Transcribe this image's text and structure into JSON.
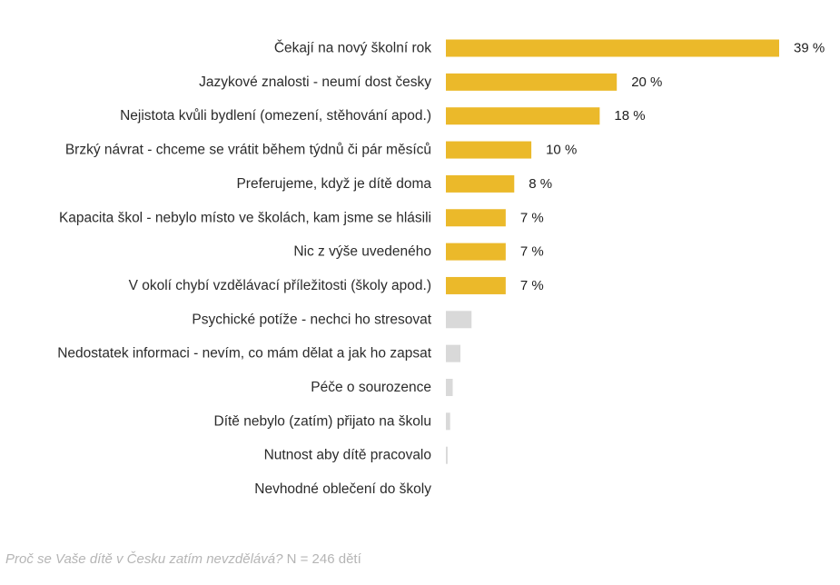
{
  "chart_data": {
    "type": "bar",
    "orientation": "horizontal",
    "title": "",
    "xlabel": "",
    "ylabel": "",
    "categories": [
      "Čekají na nový školní rok",
      "Jazykové znalosti - neumí dost česky",
      "Nejistota kvůli bydlení (omezení, stěhování apod.)",
      "Brzký návrat - chceme se vrátit během týdnů či pár měsíců",
      "Preferujeme, když je dítě doma",
      "Kapacita škol - nebylo místo ve školách, kam jsme se hlásili",
      "Nic z výše uvedeného",
      "V okolí chybí vzdělávací příležitosti (školy apod.)",
      "Psychické potíže - nechci ho stresovat",
      "Nedostatek informaci - nevím, co mám dělat a jak ho zapsat",
      "Péče o sourozence",
      "Dítě nebylo (zatím) přijato na školu",
      "Nutnost aby dítě pracovalo",
      "Nevhodné oblečení do školy"
    ],
    "values": [
      39,
      20,
      18,
      10,
      8,
      7,
      7,
      7,
      3,
      1.7,
      0.8,
      0.5,
      0.2,
      0
    ],
    "value_labels": [
      "39 %",
      "20 %",
      "18 %",
      "10 %",
      "8 %",
      "7 %",
      "7 %",
      "7 %",
      "",
      "",
      "",
      "",
      "",
      ""
    ],
    "xlim": [
      0,
      40
    ],
    "grid": false,
    "colors": {
      "highlight": "#ebb92a",
      "muted": "#d9d9d9"
    },
    "highlight_count": 8
  },
  "footnote": {
    "question": "Proč se Vaše dítě v Česku zatím nevzdělává?",
    "sample": " N = 246 dětí"
  }
}
